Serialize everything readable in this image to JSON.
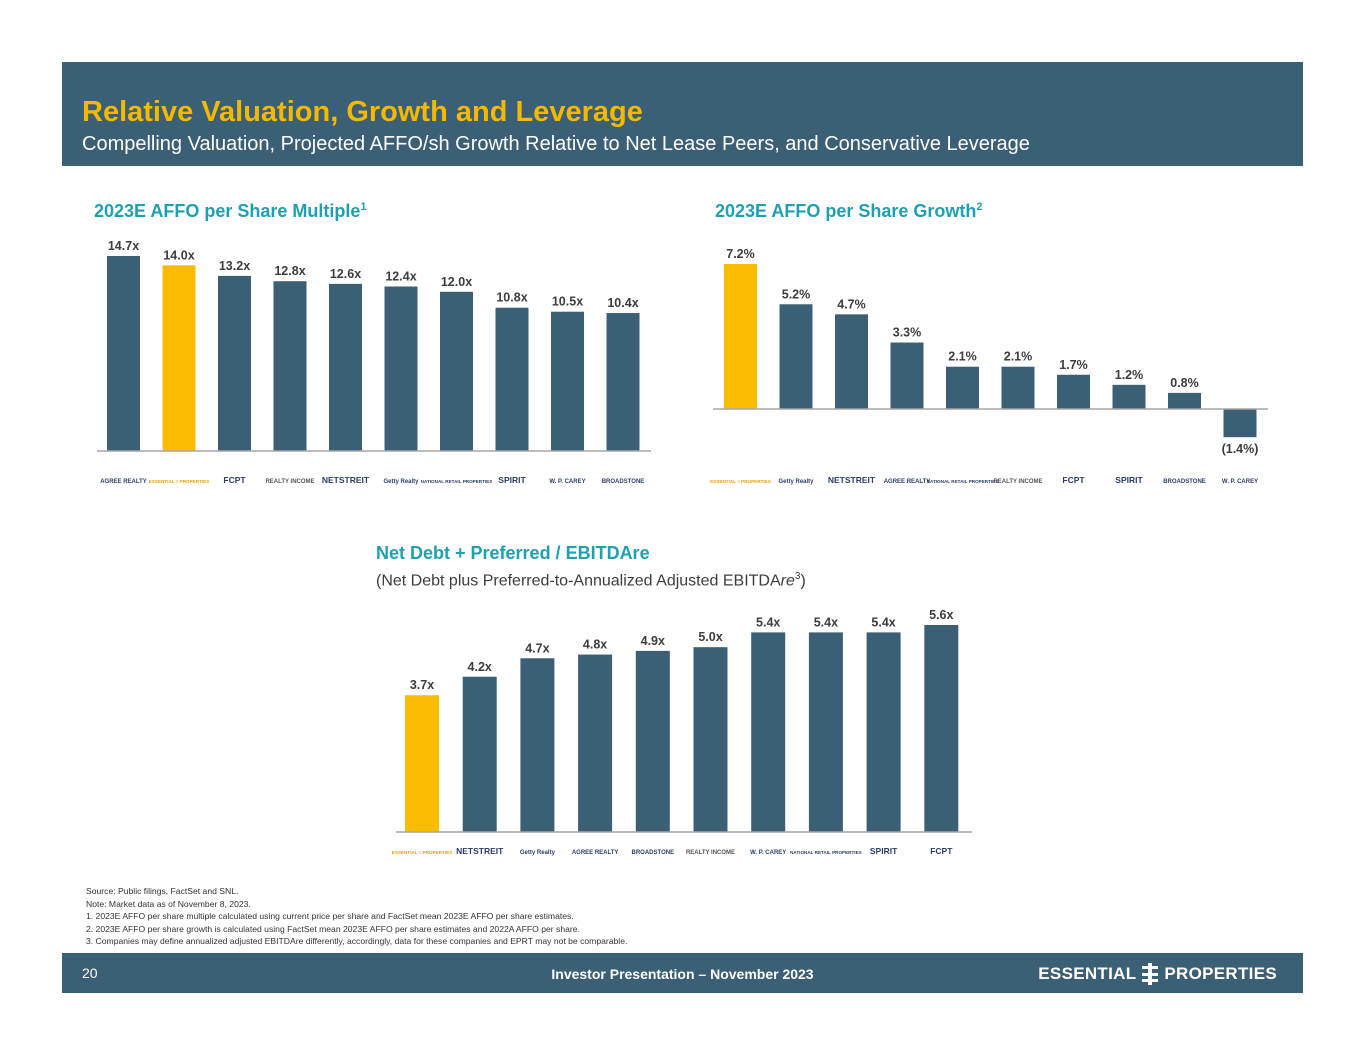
{
  "header": {
    "title": "Relative Valuation, Growth and Leverage",
    "subtitle": "Compelling Valuation, Projected AFFO/sh Growth Relative to Net Lease Peers, and Conservative Leverage"
  },
  "colors": {
    "header_bg": "#3b5f74",
    "title": "#f5b800",
    "bar": "#3b5f74",
    "highlight": "#fbbc00",
    "chart_title": "#1ea0b0"
  },
  "chart_data": [
    {
      "id": "multiple",
      "type": "bar",
      "title": "2023E AFFO per Share Multiple",
      "title_sup": "1",
      "categories": [
        "Agree Realty",
        "Essential Properties",
        "FCPT",
        "Realty Income",
        "NetSTREIT",
        "Getty Realty",
        "National Retail Properties",
        "Spirit",
        "W. P. Carey",
        "Broadstone"
      ],
      "values": [
        14.7,
        14.0,
        13.2,
        12.8,
        12.6,
        12.4,
        12.0,
        10.8,
        10.5,
        10.4
      ],
      "labels": [
        "14.7x",
        "14.0x",
        "13.2x",
        "12.8x",
        "12.6x",
        "12.4x",
        "12.0x",
        "10.8x",
        "10.5x",
        "10.4x"
      ],
      "highlight_index": 1,
      "ylim": [
        0,
        14.7
      ]
    },
    {
      "id": "growth",
      "type": "bar",
      "title": "2023E AFFO per Share Growth",
      "title_sup": "2",
      "categories": [
        "Essential Properties",
        "Getty Realty",
        "NetSTREIT",
        "Agree Realty",
        "National Retail Properties",
        "Realty Income",
        "FCPT",
        "Spirit",
        "Broadstone",
        "W. P. Carey"
      ],
      "values": [
        7.2,
        5.2,
        4.7,
        3.3,
        2.1,
        2.1,
        1.7,
        1.2,
        0.8,
        -1.4
      ],
      "labels": [
        "7.2%",
        "5.2%",
        "4.7%",
        "3.3%",
        "2.1%",
        "2.1%",
        "1.7%",
        "1.2%",
        "0.8%",
        "(1.4%)"
      ],
      "highlight_index": 0,
      "ylim": [
        -1.4,
        7.2
      ]
    },
    {
      "id": "leverage",
      "type": "bar",
      "title": "Net Debt + Preferred / EBITDAre",
      "subtitle_pre": "(Net Debt plus Preferred-to-Annualized Adjusted EBITDA",
      "subtitle_ital": "re",
      "subtitle_sup": "3",
      "subtitle_post": ")",
      "categories": [
        "Essential Properties",
        "NetSTREIT",
        "Getty Realty",
        "Agree Realty",
        "Broadstone",
        "Realty Income",
        "W. P. Carey",
        "National Retail Properties",
        "Spirit",
        "FCPT"
      ],
      "values": [
        3.7,
        4.2,
        4.7,
        4.8,
        4.9,
        5.0,
        5.4,
        5.4,
        5.4,
        5.6
      ],
      "labels": [
        "3.7x",
        "4.2x",
        "4.7x",
        "4.8x",
        "4.9x",
        "5.0x",
        "5.4x",
        "5.4x",
        "5.4x",
        "5.6x"
      ],
      "highlight_index": 0,
      "ylim": [
        0,
        5.6
      ]
    }
  ],
  "logos": {
    "Agree Realty": "AGREE REALTY",
    "Essential Properties": "ESSENTIAL ≡ PROPERTIES",
    "FCPT": "FCPT",
    "Realty Income": "REALTY INCOME",
    "NetSTREIT": "NETSTREIT",
    "Getty Realty": "Getty Realty",
    "National Retail Properties": "NATIONAL RETAIL PROPERTIES",
    "Spirit": "SPIRIT",
    "W. P. Carey": "W. P. CAREY",
    "Broadstone": "BROADSTONE"
  },
  "footnotes": [
    "Source: Public filings, FactSet and SNL.",
    "Note: Market data as of November 8, 2023.",
    "1.  2023E AFFO per share multiple calculated using current price per share and FactSet mean 2023E AFFO per share estimates.",
    "2.  2023E AFFO per share growth is calculated using FactSet mean 2023E AFFO per share estimates and 2022A AFFO per share.",
    "3.  Companies may define annualized adjusted EBITDAre differently, accordingly, data for these companies and EPRT may not be comparable."
  ],
  "footer": {
    "page_number": "20",
    "center_text": "Investor Presentation – November 2023",
    "logo_left": "ESSENTIAL",
    "logo_right": "PROPERTIES"
  }
}
